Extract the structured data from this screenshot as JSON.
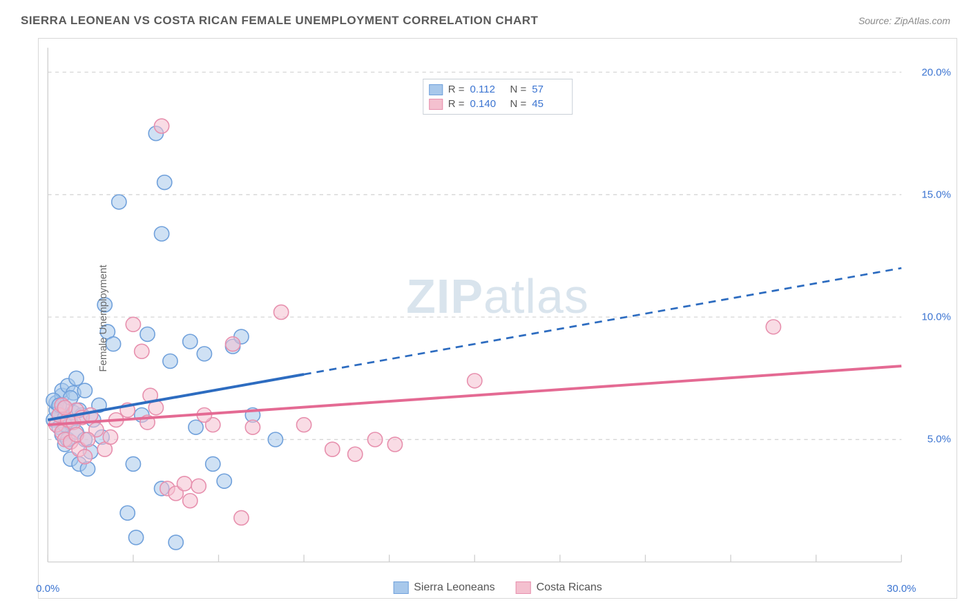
{
  "title": "SIERRA LEONEAN VS COSTA RICAN FEMALE UNEMPLOYMENT CORRELATION CHART",
  "source": "Source: ZipAtlas.com",
  "ylabel": "Female Unemployment",
  "watermark_a": "ZIP",
  "watermark_b": "atlas",
  "chart": {
    "type": "scatter",
    "xlim": [
      0,
      30
    ],
    "ylim": [
      0,
      21
    ],
    "xtick_major": [
      0,
      30
    ],
    "xtick_minor_step": 3,
    "ytick_major": [
      5,
      10,
      15,
      20
    ],
    "ytick_labels": [
      "5.0%",
      "10.0%",
      "15.0%",
      "20.0%"
    ],
    "xtick_labels": [
      "0.0%",
      "30.0%"
    ],
    "grid_color": "#d5d5d5",
    "grid_dash": "4 4",
    "axis_color": "#cfcfcf",
    "background": "#ffffff",
    "marker_radius": 8,
    "marker_opacity": 0.55,
    "series": [
      {
        "name": "Sierra Leoneans",
        "fill": "#a8c8eb",
        "stroke": "#6fa0db",
        "R": "0.112",
        "N": "57",
        "trend": {
          "x1": 0,
          "y1": 5.8,
          "x2": 30,
          "y2": 12.0,
          "solid_until_x": 9,
          "color": "#2d6cc0",
          "width": 3
        },
        "points": [
          [
            0.2,
            5.8
          ],
          [
            0.3,
            6.2
          ],
          [
            0.3,
            6.5
          ],
          [
            0.4,
            5.5
          ],
          [
            0.4,
            6.0
          ],
          [
            0.5,
            5.2
          ],
          [
            0.5,
            6.8
          ],
          [
            0.5,
            7.0
          ],
          [
            0.6,
            4.8
          ],
          [
            0.6,
            5.9
          ],
          [
            0.6,
            6.3
          ],
          [
            0.7,
            5.0
          ],
          [
            0.7,
            7.2
          ],
          [
            0.8,
            4.2
          ],
          [
            0.8,
            5.7
          ],
          [
            0.9,
            6.1
          ],
          [
            0.9,
            6.9
          ],
          [
            1.0,
            5.3
          ],
          [
            1.0,
            7.5
          ],
          [
            1.1,
            4.0
          ],
          [
            1.2,
            6.0
          ],
          [
            1.3,
            5.0
          ],
          [
            1.3,
            7.0
          ],
          [
            1.4,
            3.8
          ],
          [
            1.5,
            4.5
          ],
          [
            1.8,
            6.4
          ],
          [
            1.9,
            5.1
          ],
          [
            2.0,
            10.5
          ],
          [
            2.1,
            9.4
          ],
          [
            2.5,
            14.7
          ],
          [
            2.8,
            2.0
          ],
          [
            3.0,
            4.0
          ],
          [
            3.1,
            1.0
          ],
          [
            3.3,
            6.0
          ],
          [
            3.5,
            9.3
          ],
          [
            3.8,
            17.5
          ],
          [
            4.0,
            3.0
          ],
          [
            4.0,
            13.4
          ],
          [
            4.1,
            15.5
          ],
          [
            4.3,
            8.2
          ],
          [
            4.5,
            0.8
          ],
          [
            5.0,
            9.0
          ],
          [
            5.2,
            5.5
          ],
          [
            5.5,
            8.5
          ],
          [
            5.8,
            4.0
          ],
          [
            6.2,
            3.3
          ],
          [
            6.5,
            8.8
          ],
          [
            6.8,
            9.2
          ],
          [
            7.2,
            6.0
          ],
          [
            8.0,
            5.0
          ],
          [
            0.2,
            6.6
          ],
          [
            0.4,
            6.4
          ],
          [
            0.6,
            5.6
          ],
          [
            0.8,
            6.7
          ],
          [
            1.1,
            6.2
          ],
          [
            1.6,
            5.8
          ],
          [
            2.3,
            8.9
          ]
        ]
      },
      {
        "name": "Costa Ricans",
        "fill": "#f4c0cf",
        "stroke": "#e78fad",
        "R": "0.140",
        "N": "45",
        "trend": {
          "x1": 0,
          "y1": 5.6,
          "x2": 30,
          "y2": 8.0,
          "solid_until_x": 30,
          "color": "#e46a93",
          "width": 3
        },
        "points": [
          [
            0.3,
            5.6
          ],
          [
            0.4,
            6.0
          ],
          [
            0.5,
            5.3
          ],
          [
            0.5,
            6.4
          ],
          [
            0.6,
            5.0
          ],
          [
            0.7,
            5.8
          ],
          [
            0.8,
            4.9
          ],
          [
            0.9,
            5.7
          ],
          [
            1.0,
            5.2
          ],
          [
            1.0,
            6.2
          ],
          [
            1.1,
            4.6
          ],
          [
            1.2,
            5.9
          ],
          [
            1.3,
            4.3
          ],
          [
            1.5,
            6.0
          ],
          [
            1.7,
            5.4
          ],
          [
            2.0,
            4.6
          ],
          [
            2.4,
            5.8
          ],
          [
            2.8,
            6.2
          ],
          [
            3.0,
            9.7
          ],
          [
            3.3,
            8.6
          ],
          [
            3.5,
            5.7
          ],
          [
            3.8,
            6.3
          ],
          [
            4.0,
            17.8
          ],
          [
            4.2,
            3.0
          ],
          [
            4.5,
            2.8
          ],
          [
            4.8,
            3.2
          ],
          [
            5.0,
            2.5
          ],
          [
            5.3,
            3.1
          ],
          [
            5.8,
            5.6
          ],
          [
            6.5,
            8.9
          ],
          [
            6.8,
            1.8
          ],
          [
            7.2,
            5.5
          ],
          [
            8.2,
            10.2
          ],
          [
            9.0,
            5.6
          ],
          [
            10.0,
            4.6
          ],
          [
            10.8,
            4.4
          ],
          [
            11.5,
            5.0
          ],
          [
            12.2,
            4.8
          ],
          [
            15.0,
            7.4
          ],
          [
            25.5,
            9.6
          ],
          [
            0.6,
            6.3
          ],
          [
            1.4,
            5.0
          ],
          [
            2.2,
            5.1
          ],
          [
            3.6,
            6.8
          ],
          [
            5.5,
            6.0
          ]
        ]
      }
    ],
    "legend_labels": [
      "Sierra Leoneans",
      "Costa Ricans"
    ],
    "infobox_label_R": "R =",
    "infobox_label_N": "N ="
  }
}
